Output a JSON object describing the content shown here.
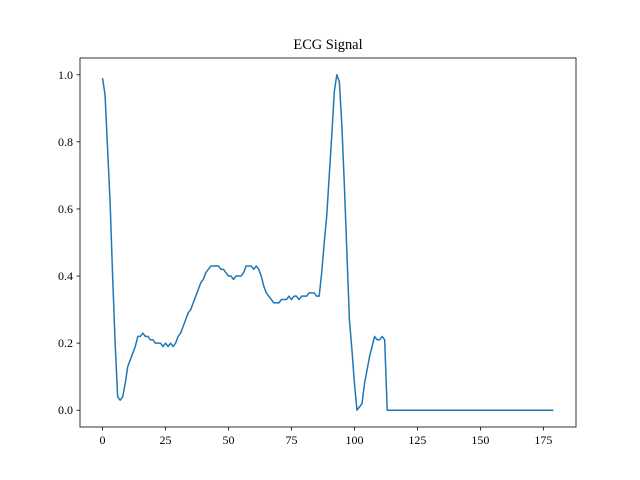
{
  "chart_data": {
    "type": "line",
    "title": "ECG Signal",
    "x": [
      0,
      1,
      2,
      3,
      4,
      5,
      6,
      7,
      8,
      9,
      10,
      11,
      12,
      13,
      14,
      15,
      16,
      17,
      18,
      19,
      20,
      21,
      22,
      23,
      24,
      25,
      26,
      27,
      28,
      29,
      30,
      31,
      32,
      33,
      34,
      35,
      36,
      37,
      38,
      39,
      40,
      41,
      42,
      43,
      44,
      45,
      46,
      47,
      48,
      49,
      50,
      51,
      52,
      53,
      54,
      55,
      56,
      57,
      58,
      59,
      60,
      61,
      62,
      63,
      64,
      65,
      66,
      67,
      68,
      69,
      70,
      71,
      72,
      73,
      74,
      75,
      76,
      77,
      78,
      79,
      80,
      81,
      82,
      83,
      84,
      85,
      86,
      87,
      88,
      89,
      90,
      91,
      92,
      93,
      94,
      95,
      96,
      97,
      98,
      99,
      100,
      101,
      102,
      103,
      104,
      105,
      106,
      107,
      108,
      109,
      110,
      111,
      112,
      113,
      114,
      115,
      116,
      117,
      118,
      119,
      120,
      121,
      122,
      123,
      124,
      125,
      126,
      127,
      128,
      129,
      130,
      131,
      132,
      133,
      134,
      135,
      136,
      137,
      138,
      139,
      140,
      141,
      142,
      143,
      144,
      145,
      146,
      147,
      148,
      149,
      150,
      151,
      152,
      153,
      154,
      155,
      156,
      157,
      158,
      159,
      160,
      161,
      162,
      163,
      164,
      165,
      166,
      167,
      168,
      169,
      170,
      171,
      172,
      173,
      174,
      175,
      176,
      177,
      178,
      179
    ],
    "series": [
      {
        "color": "#1f77b4",
        "values": [
          0.99,
          0.94,
          0.78,
          0.62,
          0.4,
          0.2,
          0.04,
          0.03,
          0.04,
          0.08,
          0.13,
          0.15,
          0.17,
          0.19,
          0.22,
          0.22,
          0.23,
          0.22,
          0.22,
          0.21,
          0.21,
          0.2,
          0.2,
          0.2,
          0.19,
          0.2,
          0.19,
          0.2,
          0.19,
          0.2,
          0.22,
          0.23,
          0.25,
          0.27,
          0.29,
          0.3,
          0.32,
          0.34,
          0.36,
          0.38,
          0.39,
          0.41,
          0.42,
          0.43,
          0.43,
          0.43,
          0.43,
          0.42,
          0.42,
          0.41,
          0.4,
          0.4,
          0.39,
          0.4,
          0.4,
          0.4,
          0.41,
          0.43,
          0.43,
          0.43,
          0.42,
          0.43,
          0.42,
          0.4,
          0.37,
          0.35,
          0.34,
          0.33,
          0.32,
          0.32,
          0.32,
          0.33,
          0.33,
          0.33,
          0.34,
          0.33,
          0.34,
          0.34,
          0.33,
          0.34,
          0.34,
          0.34,
          0.35,
          0.35,
          0.35,
          0.34,
          0.34,
          0.41,
          0.5,
          0.58,
          0.7,
          0.82,
          0.95,
          1.0,
          0.98,
          0.85,
          0.67,
          0.47,
          0.27,
          0.18,
          0.08,
          0.0,
          0.01,
          0.02,
          0.08,
          0.12,
          0.16,
          0.19,
          0.22,
          0.21,
          0.21,
          0.22,
          0.21,
          0,
          0,
          0,
          0,
          0,
          0,
          0,
          0,
          0,
          0,
          0,
          0,
          0,
          0,
          0,
          0,
          0,
          0,
          0,
          0,
          0,
          0,
          0,
          0,
          0,
          0,
          0,
          0,
          0,
          0,
          0,
          0,
          0,
          0,
          0,
          0,
          0,
          0,
          0,
          0,
          0,
          0,
          0,
          0,
          0,
          0,
          0,
          0,
          0,
          0,
          0,
          0,
          0,
          0,
          0,
          0,
          0,
          0,
          0,
          0,
          0,
          0,
          0,
          0,
          0,
          0,
          0
        ]
      }
    ],
    "xlim": [
      -8.95,
      187.95
    ],
    "xticks": [
      0,
      25,
      50,
      75,
      100,
      125,
      150,
      175
    ],
    "ylim": [
      -0.05,
      1.05
    ],
    "yticks": [
      {
        "value": 0,
        "label": "0.0"
      },
      {
        "value": 0.2,
        "label": "0.2"
      },
      {
        "value": 0.4,
        "label": "0.4"
      },
      {
        "value": 0.6,
        "label": "0.6"
      },
      {
        "value": 0.8,
        "label": "0.8"
      },
      {
        "value": 1,
        "label": "1.0"
      }
    ],
    "grid": false
  }
}
